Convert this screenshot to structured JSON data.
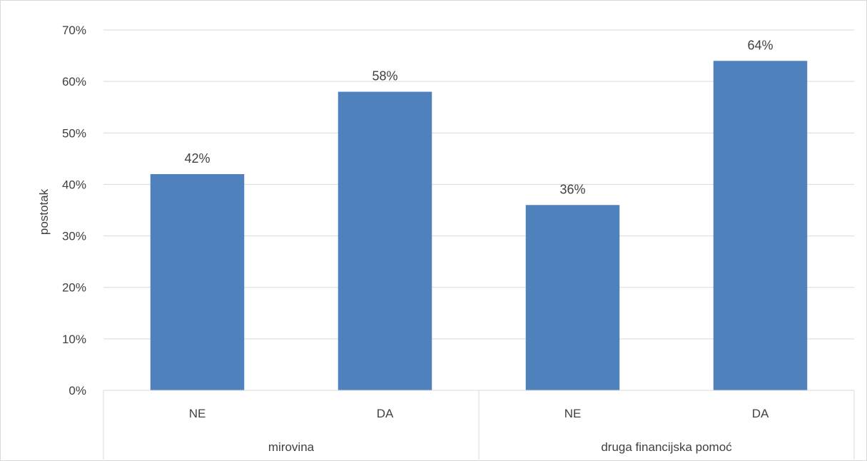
{
  "chart_data": {
    "type": "bar",
    "ylabel": "postotak",
    "xlabel": "",
    "ylim": [
      0,
      70
    ],
    "y_ticks": [
      0,
      10,
      20,
      30,
      40,
      50,
      60,
      70
    ],
    "y_tick_suffix": "%",
    "grid": true,
    "legend": "none",
    "groups": [
      {
        "name": "mirovina",
        "categories": [
          "NE",
          "DA"
        ],
        "values": [
          42,
          58
        ],
        "labels": [
          "42%",
          "58%"
        ]
      },
      {
        "name": "druga financijska pomoć",
        "categories": [
          "NE",
          "DA"
        ],
        "values": [
          36,
          64
        ],
        "labels": [
          "36%",
          "64%"
        ]
      }
    ],
    "bar_color": "#4f81bd"
  }
}
